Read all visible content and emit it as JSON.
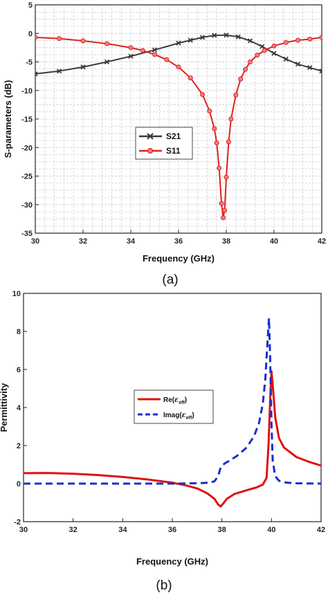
{
  "chart_data": [
    {
      "type": "line",
      "panel_label": "(a)",
      "xlabel": "Frequency (GHz)",
      "ylabel": "S-parameters (dB)",
      "xlim": [
        30,
        42
      ],
      "ylim": [
        -35,
        5
      ],
      "xticks": [
        "30",
        "32",
        "34",
        "36",
        "38",
        "40",
        "42"
      ],
      "yticks": [
        "-35",
        "-30",
        "-25",
        "-20",
        "-15",
        "-10",
        "-5",
        "0",
        "5"
      ],
      "grid": true,
      "legend_position": "center-left",
      "series": [
        {
          "name": "S21",
          "color": "#3a3a3a",
          "marker": "x",
          "x": [
            30,
            31,
            32,
            33,
            34,
            35,
            36,
            36.5,
            37,
            37.5,
            38,
            38.5,
            39,
            39.5,
            40,
            40.5,
            41,
            41.5,
            42
          ],
          "y": [
            -7.1,
            -6.6,
            -5.9,
            -5.0,
            -4.0,
            -2.9,
            -1.7,
            -1.2,
            -0.7,
            -0.35,
            -0.3,
            -0.6,
            -1.3,
            -2.3,
            -3.5,
            -4.5,
            -5.4,
            -6.0,
            -6.6
          ]
        },
        {
          "name": "S11",
          "color": "#e02020",
          "marker": "o",
          "x": [
            30,
            31,
            32,
            33,
            34,
            34.5,
            35,
            35.5,
            36,
            36.5,
            37,
            37.3,
            37.5,
            37.6,
            37.7,
            37.8,
            37.87,
            37.93,
            38,
            38.1,
            38.2,
            38.4,
            38.6,
            38.8,
            39,
            39.3,
            39.6,
            40,
            40.5,
            41,
            41.5,
            42
          ],
          "y": [
            -0.7,
            -0.9,
            -1.3,
            -1.8,
            -2.5,
            -3.0,
            -3.7,
            -4.6,
            -5.9,
            -7.8,
            -10.7,
            -13.6,
            -16.7,
            -19.2,
            -23.6,
            -29.8,
            -32.3,
            -31.0,
            -25.2,
            -19.0,
            -15.0,
            -10.8,
            -8.0,
            -6.3,
            -5.0,
            -3.8,
            -3.0,
            -2.2,
            -1.6,
            -1.2,
            -1.0,
            -0.7
          ]
        }
      ]
    },
    {
      "type": "line",
      "panel_label": "(b)",
      "xlabel": "Frequency (GHz)",
      "ylabel": "Permittivity",
      "xlim": [
        30,
        42
      ],
      "ylim": [
        -2,
        10
      ],
      "xticks": [
        "30",
        "32",
        "34",
        "36",
        "38",
        "40",
        "42"
      ],
      "yticks": [
        "-2",
        "0",
        "2",
        "4",
        "6",
        "8",
        "10"
      ],
      "grid": false,
      "legend_position": "center-right",
      "series": [
        {
          "name_main": "Re(",
          "name_symbol": "ε",
          "name_sub": "eff",
          "name_end": ")",
          "color": "#e01010",
          "style": "solid",
          "x": [
            30,
            31,
            32,
            33,
            34,
            35,
            36,
            36.5,
            37,
            37.4,
            37.7,
            37.85,
            37.95,
            38.05,
            38.2,
            38.5,
            39,
            39.4,
            39.65,
            39.8,
            39.88,
            39.95,
            40,
            40.05,
            40.15,
            40.3,
            40.5,
            41,
            41.5,
            42
          ],
          "y": [
            0.55,
            0.56,
            0.52,
            0.45,
            0.35,
            0.22,
            0.05,
            -0.08,
            -0.25,
            -0.5,
            -0.8,
            -1.1,
            -1.2,
            -1.05,
            -0.8,
            -0.55,
            -0.35,
            -0.2,
            -0.05,
            0.3,
            2.0,
            4.5,
            5.9,
            5.2,
            3.5,
            2.4,
            1.9,
            1.4,
            1.15,
            0.95
          ]
        },
        {
          "name_main": "Imag(",
          "name_symbol": "ε",
          "name_sub": "eff",
          "name_end": ")",
          "color": "#1a2ecc",
          "style": "dashed",
          "x": [
            30,
            31,
            32,
            33,
            34,
            35,
            36,
            37,
            37.5,
            37.7,
            37.85,
            37.95,
            38.1,
            38.3,
            38.6,
            39,
            39.3,
            39.5,
            39.65,
            39.75,
            39.83,
            39.9,
            39.95,
            40,
            40.05,
            40.15,
            40.3,
            40.6,
            41,
            42
          ],
          "y": [
            0,
            0,
            0,
            0,
            0,
            0,
            0,
            0.02,
            0.05,
            0.12,
            0.4,
            0.85,
            1.05,
            1.2,
            1.45,
            1.9,
            2.5,
            3.2,
            4.2,
            5.5,
            7.2,
            8.7,
            6.5,
            3.2,
            1.2,
            0.4,
            0.15,
            0.05,
            0.02,
            0
          ]
        }
      ]
    }
  ]
}
